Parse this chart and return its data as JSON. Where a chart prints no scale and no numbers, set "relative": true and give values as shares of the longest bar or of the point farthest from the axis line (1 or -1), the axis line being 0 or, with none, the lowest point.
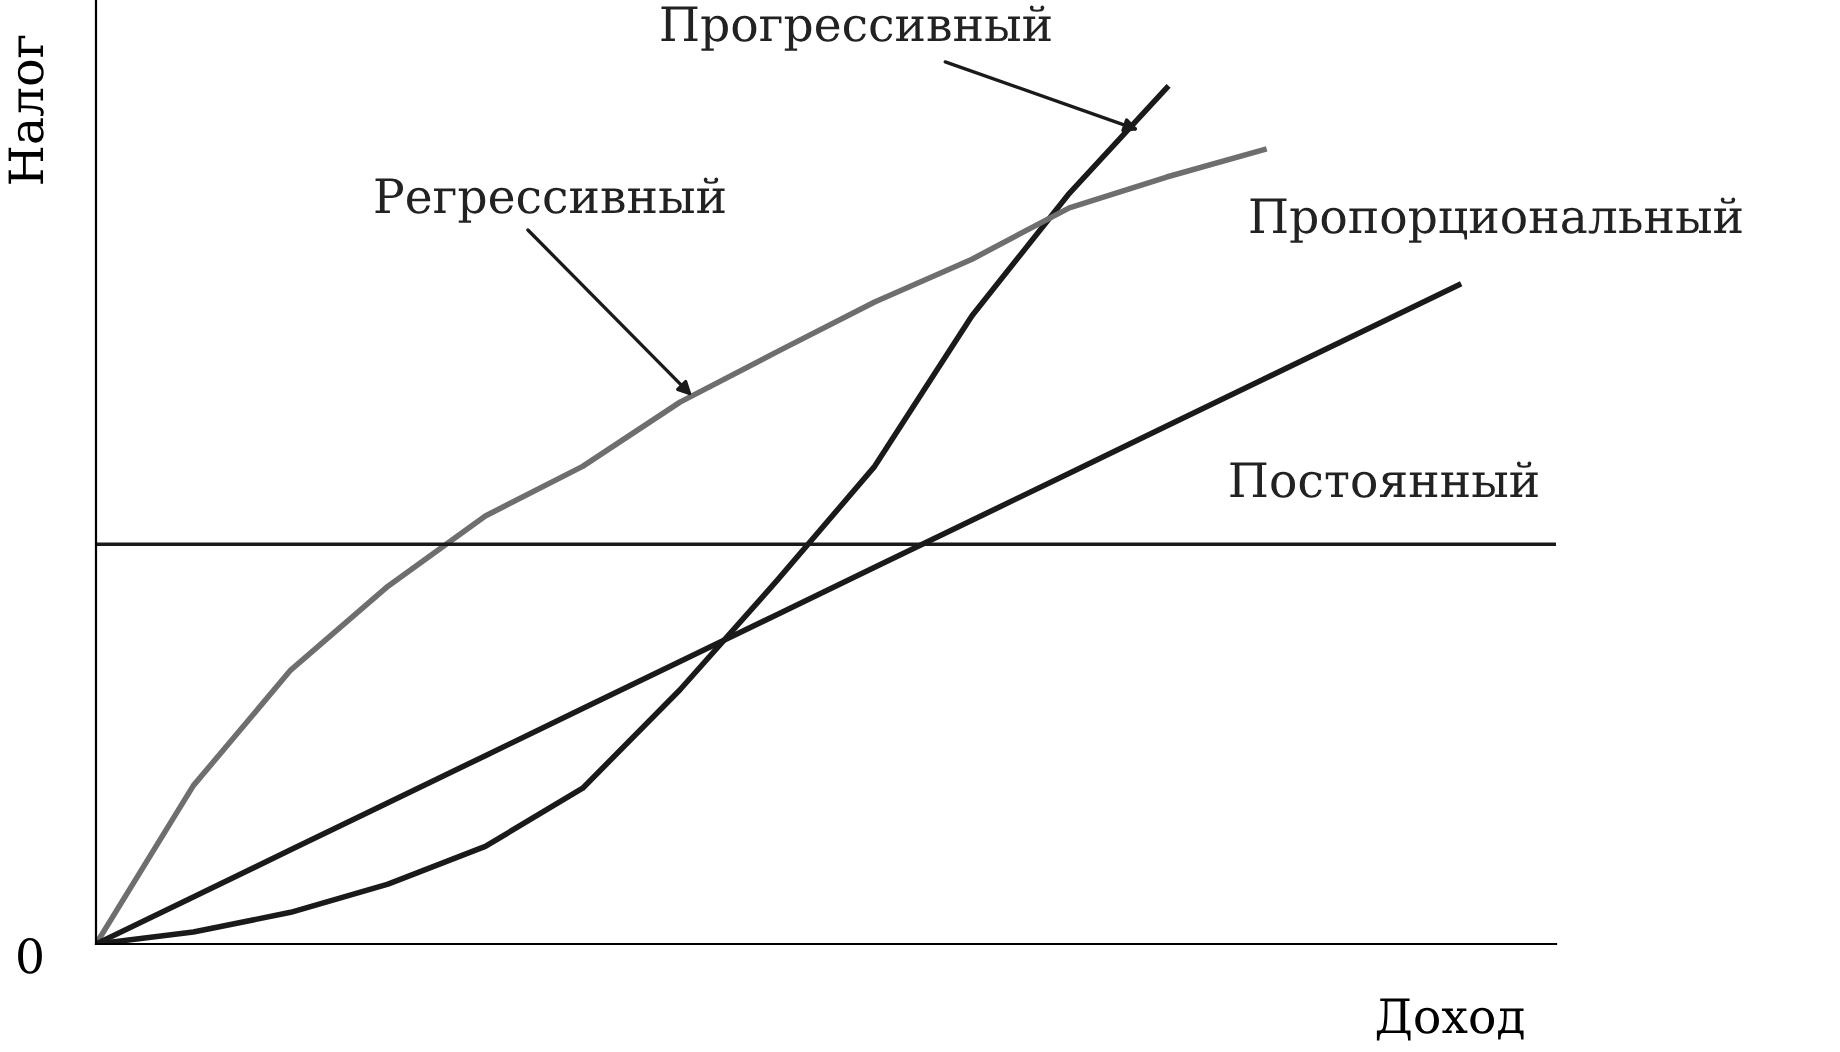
{
  "chart_data": {
    "type": "line",
    "relative": true,
    "xlabel": "Доход",
    "ylabel": "Налог",
    "annotations": [
      "0"
    ],
    "line_style": "solid",
    "categories": [
      null,
      null,
      null,
      null,
      null,
      null,
      null,
      null,
      null,
      null,
      null,
      null,
      null,
      null,
      null,
      null
    ],
    "series": [
      {
        "name": "Прогрессивный",
        "color": "#1a1a1a",
        "values": [
          0,
          0.014,
          0.037,
          0.07,
          0.114,
          0.182,
          0.297,
          0.425,
          0.558,
          0.734,
          0.877,
          1.0,
          null,
          null,
          null,
          null
        ]
      },
      {
        "name": "Регрессивный",
        "color": "#6e6e6e",
        "values": [
          0,
          0.185,
          0.32,
          0.418,
          0.5,
          0.558,
          0.633,
          0.692,
          0.75,
          0.8,
          0.86,
          0.896,
          0.928,
          null,
          null,
          null
        ]
      },
      {
        "name": "Пропорциональный",
        "color": "#1a1a1a",
        "values": [
          0,
          0.055,
          0.11,
          0.165,
          0.22,
          0.275,
          0.33,
          0.385,
          0.44,
          0.495,
          0.55,
          0.605,
          0.66,
          0.715,
          0.77,
          null
        ]
      },
      {
        "name": "Постоянный",
        "color": "#1a1a1a",
        "values": [
          0.467,
          0.467,
          0.467,
          0.467,
          0.467,
          0.467,
          0.467,
          0.467,
          0.467,
          0.467,
          0.467,
          0.467,
          0.467,
          0.467,
          0.467,
          0.467
        ]
      }
    ]
  }
}
